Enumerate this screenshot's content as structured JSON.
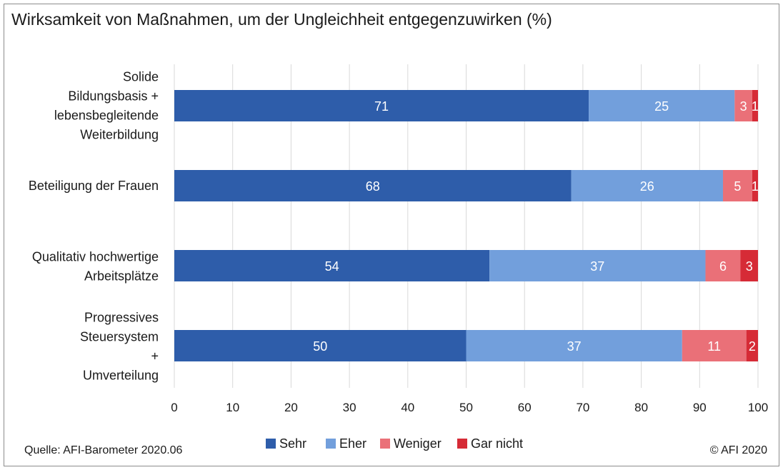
{
  "source": "Quelle: AFI-Barometer 2020.06",
  "copyright": "© AFI 2020",
  "chart_data": {
    "type": "bar",
    "orientation": "horizontal",
    "stacked": true,
    "title": "Wirksamkeit von Maßnahmen, um der Ungleichheit entgegenzuwirken (%)",
    "categories": [
      [
        "Solide",
        "Bildungsbasis +",
        "lebensbegleitende",
        "Weiterbildung"
      ],
      [
        "Beteiligung der Frauen"
      ],
      [
        "Qualitativ hochwertige",
        "Arbeitsplätze"
      ],
      [
        "Progressives",
        "Steuersystem",
        "+",
        "Umverteilung"
      ]
    ],
    "series": [
      {
        "name": "Sehr",
        "color": "#2e5daa",
        "values": [
          71,
          68,
          54,
          50
        ]
      },
      {
        "name": "Eher",
        "color": "#729fdc",
        "values": [
          25,
          26,
          37,
          37
        ]
      },
      {
        "name": "Weniger",
        "color": "#ea7078",
        "values": [
          3,
          5,
          6,
          11
        ]
      },
      {
        "name": "Gar nicht",
        "color": "#d62b36",
        "values": [
          1,
          1,
          3,
          2
        ]
      }
    ],
    "xlim": [
      0,
      100
    ],
    "xticks": [
      0,
      10,
      20,
      30,
      40,
      50,
      60,
      70,
      80,
      90,
      100
    ],
    "grid": true,
    "legend_position": "bottom"
  }
}
